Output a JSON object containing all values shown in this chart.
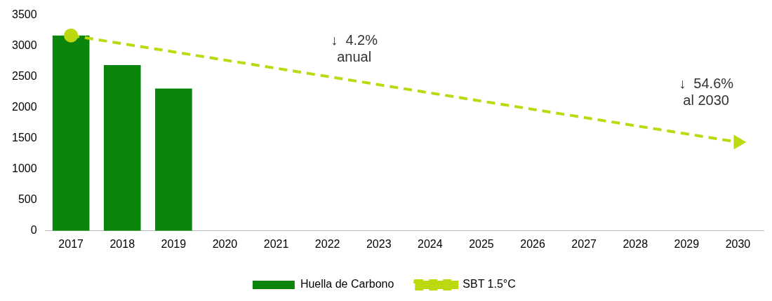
{
  "chart_data": {
    "type": "bar",
    "categories": [
      "2017",
      "2018",
      "2019",
      "2020",
      "2021",
      "2022",
      "2023",
      "2024",
      "2025",
      "2026",
      "2027",
      "2028",
      "2029",
      "2030"
    ],
    "series": [
      {
        "name": "Huella de Carbono",
        "color": "#0a840a",
        "values": [
          3170,
          2690,
          2310,
          null,
          null,
          null,
          null,
          null,
          null,
          null,
          null,
          null,
          null,
          null
        ]
      },
      {
        "name": "SBT 1.5°C",
        "type": "line",
        "color": "#bcd80f",
        "line_style": "dashed",
        "marker": "circle",
        "values": [
          3170,
          null,
          null,
          null,
          null,
          null,
          null,
          null,
          null,
          null,
          null,
          null,
          null,
          1440
        ]
      }
    ],
    "ylim": [
      0,
      3500
    ],
    "yticks": [
      0,
      500,
      1000,
      1500,
      2000,
      2500,
      3000,
      3500
    ],
    "grid": false,
    "legend": "bottom",
    "annotations": [
      "↓  4.2%\nanual",
      "↓  54.6%\nal 2030"
    ]
  }
}
